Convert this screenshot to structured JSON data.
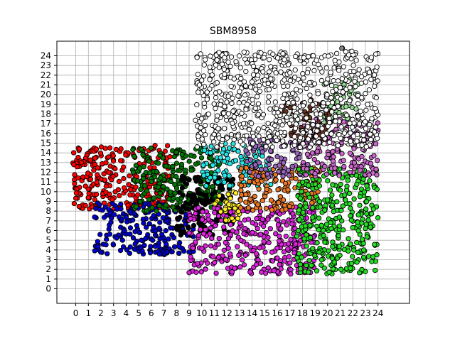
{
  "chart_data": {
    "type": "scatter",
    "title": "SBM8958",
    "xlabel": "",
    "ylabel": "",
    "xlim": [
      -1.5,
      26.5
    ],
    "ylim": [
      -1.5,
      25.5
    ],
    "x_ticks": [
      0,
      1,
      2,
      3,
      4,
      5,
      6,
      7,
      8,
      9,
      10,
      11,
      12,
      13,
      14,
      15,
      16,
      17,
      18,
      19,
      20,
      21,
      22,
      23,
      24
    ],
    "y_ticks": [
      0,
      1,
      2,
      3,
      4,
      5,
      6,
      7,
      8,
      9,
      10,
      11,
      12,
      13,
      14,
      15,
      16,
      17,
      18,
      19,
      20,
      21,
      22,
      23,
      24
    ],
    "grid": true,
    "legend": "none",
    "marker": "circle with black edge",
    "clusters": [
      {
        "color": "#ff0000",
        "x_range": [
          -0.3,
          7.5
        ],
        "y_range": [
          8.2,
          14.8
        ]
      },
      {
        "color": "#0000cc",
        "x_range": [
          1.5,
          9.5
        ],
        "y_range": [
          3.5,
          9.0
        ]
      },
      {
        "color": "#007700",
        "x_range": [
          4.5,
          11.5
        ],
        "y_range": [
          8.0,
          14.5
        ]
      },
      {
        "color": "#000000",
        "x_range": [
          8.0,
          12.5
        ],
        "y_range": [
          5.5,
          11.5
        ]
      },
      {
        "color": "#dd22dd",
        "x_range": [
          9.0,
          19.0
        ],
        "y_range": [
          1.5,
          8.5
        ]
      },
      {
        "color": "#ffee22",
        "x_range": [
          11.0,
          13.0
        ],
        "y_range": [
          7.0,
          10.5
        ]
      },
      {
        "color": "#22e5e5",
        "x_range": [
          10.0,
          15.5
        ],
        "y_range": [
          10.5,
          15.0
        ]
      },
      {
        "color": "#ee7722",
        "x_range": [
          13.0,
          19.5
        ],
        "y_range": [
          8.0,
          12.5
        ]
      },
      {
        "color": "#9966bb",
        "x_range": [
          13.5,
          18.5
        ],
        "y_range": [
          11.5,
          15.5
        ]
      },
      {
        "color": "#22dd22",
        "x_range": [
          17.5,
          24.0
        ],
        "y_range": [
          1.5,
          12.5
        ]
      },
      {
        "color": "#cc66cc",
        "x_range": [
          18.0,
          24.0
        ],
        "y_range": [
          11.5,
          17.5
        ]
      },
      {
        "color": "#663322",
        "x_range": [
          16.5,
          20.5
        ],
        "y_range": [
          15.5,
          19.5
        ]
      },
      {
        "color": "#99dd99",
        "x_range": [
          19.5,
          22.5
        ],
        "y_range": [
          17.0,
          21.5
        ]
      },
      {
        "color": "#ffffff",
        "x_range": [
          9.5,
          24.0
        ],
        "y_range": [
          14.5,
          24.5
        ]
      },
      {
        "color": "#888888",
        "x_range": [
          21.0,
          21.5
        ],
        "y_range": [
          24.5,
          24.8
        ]
      }
    ]
  }
}
